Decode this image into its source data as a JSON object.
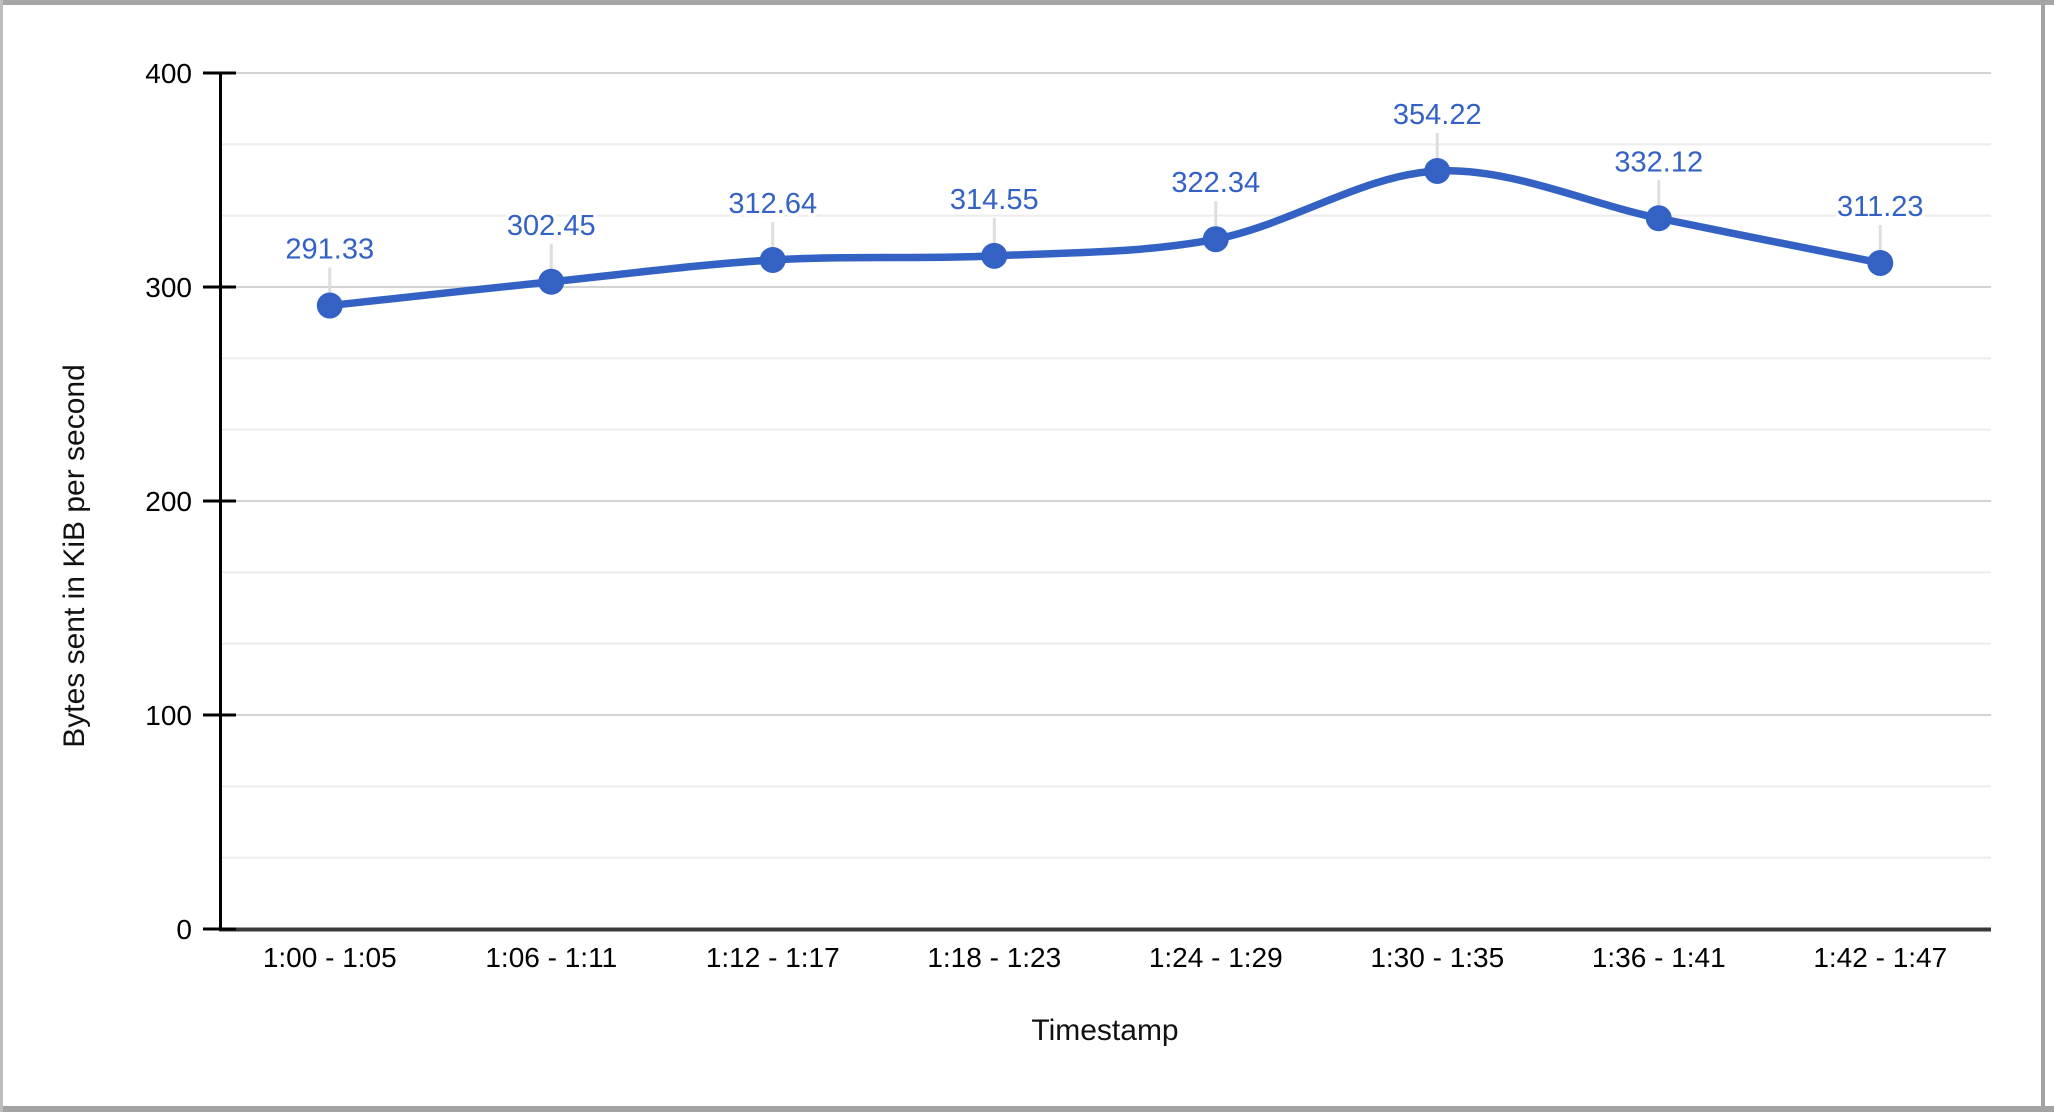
{
  "chart_data": {
    "type": "line",
    "categories": [
      "1:00 - 1:05",
      "1:06 - 1:11",
      "1:12 - 1:17",
      "1:18 - 1:23",
      "1:24 - 1:29",
      "1:30 - 1:35",
      "1:36 - 1:41",
      "1:42 - 1:47"
    ],
    "values": [
      291.33,
      302.45,
      312.64,
      314.55,
      322.34,
      354.22,
      332.12,
      311.23
    ],
    "point_labels": [
      "291.33",
      "302.45",
      "312.64",
      "314.55",
      "322.34",
      "354.22",
      "332.12",
      "311.23"
    ],
    "title": "",
    "xlabel": "Timestamp",
    "ylabel": "Bytes sent in KiB per second",
    "ylim": [
      0,
      400
    ],
    "y_ticks": [
      0,
      100,
      200,
      300,
      400
    ],
    "y_tick_labels": [
      "0",
      "100",
      "200",
      "300",
      "400"
    ],
    "minor_gridlines_per_interval": 2,
    "line_smooth": true,
    "legend": "none",
    "grid": "on",
    "colors": {
      "series": "#3462c4",
      "major_gridline": "#d4d4d4",
      "minor_gridline": "#ececec",
      "axis_line": "#000000",
      "baseline": "#3a3a3a",
      "leader_line": "#dedede",
      "tick_text": "#000000",
      "data_label_text": "#3462c4",
      "frame_border": "#a6a6a6"
    }
  }
}
